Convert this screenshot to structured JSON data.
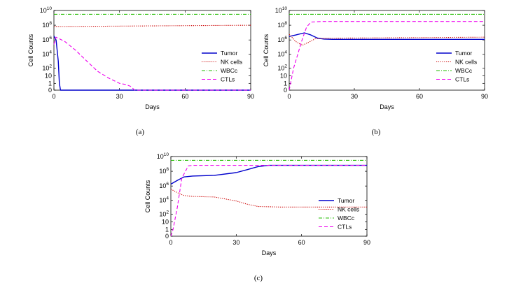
{
  "chart_data": [
    {
      "panel": "a",
      "caption": "(a)",
      "type": "line",
      "xlabel": "Days",
      "ylabel": "Cell Counts",
      "xlim": [
        0,
        90
      ],
      "x_ticks": [
        "0",
        "30",
        "60",
        "90"
      ],
      "y_ticks": [
        "0",
        "1",
        "10",
        "10^2",
        "10^4",
        "10^6",
        "10^8",
        "10^10"
      ],
      "y_scale": "log (0 at bottom)",
      "legend_position": "lower-right",
      "series": [
        {
          "name": "Tumor",
          "color": "#0000cc",
          "style": "solid",
          "x": [
            0,
            1,
            2,
            2.5,
            3,
            90
          ],
          "y": [
            3000000,
            800000,
            1000,
            1,
            0,
            0
          ]
        },
        {
          "name": "NK cells",
          "color": "#cc0000",
          "style": "dotted",
          "x": [
            0,
            90
          ],
          "y": [
            60000000,
            90000000
          ]
        },
        {
          "name": "WBCc",
          "color": "#22bb00",
          "style": "dashdot",
          "x": [
            0,
            90
          ],
          "y": [
            3000000000,
            3000000000
          ]
        },
        {
          "name": "CTLs",
          "color": "#ee00ee",
          "style": "dashed",
          "x": [
            0,
            1,
            5,
            10,
            15,
            20,
            25,
            30,
            33,
            35,
            37,
            90
          ],
          "y": [
            200000,
            2000000,
            500000,
            30000,
            1000,
            40,
            5,
            1,
            0.3,
            0.05,
            0,
            0
          ]
        }
      ]
    },
    {
      "panel": "b",
      "caption": "(b)",
      "type": "line",
      "xlabel": "Days",
      "ylabel": "Cell Counts",
      "xlim": [
        0,
        90
      ],
      "x_ticks": [
        "0",
        "30",
        "60",
        "90"
      ],
      "y_ticks": [
        "0",
        "1",
        "10",
        "10^2",
        "10^4",
        "10^6",
        "10^8",
        "10^10"
      ],
      "y_scale": "log (0 at bottom)",
      "legend_position": "lower-right",
      "series": [
        {
          "name": "Tumor",
          "color": "#0000cc",
          "style": "solid",
          "x": [
            0,
            3,
            7,
            10,
            13,
            16,
            20,
            30,
            90
          ],
          "y": [
            2500000,
            4000000,
            8000000,
            4000000,
            1500000,
            1100000,
            1000000,
            1000000,
            1000000
          ]
        },
        {
          "name": "NK cells",
          "color": "#cc0000",
          "style": "dotted",
          "x": [
            0,
            3,
            6,
            9,
            12,
            16,
            25,
            90
          ],
          "y": [
            5000000,
            500000,
            150000,
            400000,
            1200000,
            1400000,
            1500000,
            2000000
          ]
        },
        {
          "name": "WBCc",
          "color": "#22bb00",
          "style": "dashdot",
          "x": [
            0,
            90
          ],
          "y": [
            3000000000,
            3000000000
          ]
        },
        {
          "name": "CTLs",
          "color": "#ee00ee",
          "style": "dashed",
          "x": [
            0,
            2,
            4,
            6,
            8,
            10,
            15,
            90
          ],
          "y": [
            0,
            100,
            10000,
            1000000,
            50000000,
            250000000,
            300000000,
            300000000
          ]
        }
      ]
    },
    {
      "panel": "c",
      "caption": "(c)",
      "type": "line",
      "xlabel": "Days",
      "ylabel": "Cell Counts",
      "xlim": [
        0,
        90
      ],
      "x_ticks": [
        "0",
        "30",
        "60",
        "90"
      ],
      "y_ticks": [
        "0",
        "1",
        "10",
        "10^2",
        "10^4",
        "10^6",
        "10^8",
        "10^10"
      ],
      "y_scale": "log (0 at bottom)",
      "legend_position": "lower-right",
      "series": [
        {
          "name": "Tumor",
          "color": "#0000cc",
          "style": "solid",
          "x": [
            0,
            3,
            6,
            10,
            20,
            30,
            35,
            40,
            45,
            90
          ],
          "y": [
            1500000,
            5000000,
            15000000,
            20000000,
            25000000,
            60000000,
            150000000,
            400000000,
            600000000,
            600000000
          ]
        },
        {
          "name": "NK cells",
          "color": "#cc0000",
          "style": "dotted",
          "x": [
            0,
            3,
            6,
            10,
            20,
            30,
            35,
            40,
            50,
            90
          ],
          "y": [
            300000,
            100000,
            40000,
            30000,
            25000,
            7000,
            2500,
            1200,
            1000,
            1000
          ]
        },
        {
          "name": "WBCc",
          "color": "#22bb00",
          "style": "dashdot",
          "x": [
            0,
            90
          ],
          "y": [
            3000000000,
            3000000000
          ]
        },
        {
          "name": "CTLs",
          "color": "#ee00ee",
          "style": "dashed",
          "x": [
            0,
            1,
            3,
            5,
            8,
            10,
            90
          ],
          "y": [
            0,
            1,
            1000,
            10000000,
            500000000,
            600000000,
            600000000
          ]
        }
      ]
    }
  ]
}
